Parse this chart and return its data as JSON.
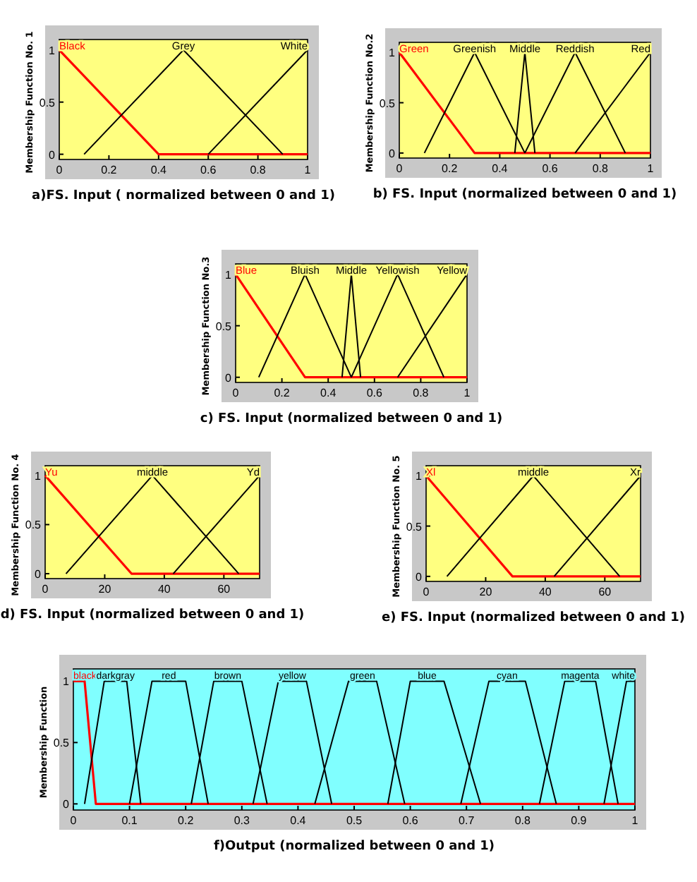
{
  "chart_data": [
    {
      "type": "line",
      "xlabel": "a)FS. Input ( normalized between 0 and 1)",
      "ylabel": "Membership Function No. 1",
      "xlim": [
        0,
        1
      ],
      "ylim": [
        -0.05,
        1.1
      ],
      "xticks": [
        0,
        0.2,
        0.4,
        0.6,
        0.8,
        1
      ],
      "yticks": [
        0,
        0.5,
        1
      ],
      "grid": false,
      "series": [
        {
          "name": "Black",
          "color": "#ff0000",
          "x": [
            0,
            0.4,
            1
          ],
          "values": [
            1,
            0,
            0
          ]
        },
        {
          "name": "Grey",
          "color": "#000000",
          "x": [
            0.1,
            0.5,
            0.9
          ],
          "values": [
            0,
            1,
            0
          ]
        },
        {
          "name": "White",
          "color": "#000000",
          "x": [
            0.6,
            1
          ],
          "values": [
            0,
            1
          ]
        }
      ]
    },
    {
      "type": "line",
      "xlabel": "b) FS. Input (normalized between 0 and 1)",
      "ylabel": "Membership Function No.2",
      "xlim": [
        0,
        1
      ],
      "ylim": [
        -0.05,
        1.1
      ],
      "xticks": [
        0,
        0.2,
        0.4,
        0.6,
        0.8,
        1
      ],
      "yticks": [
        0,
        0.5,
        1
      ],
      "grid": false,
      "series": [
        {
          "name": "Green",
          "color": "#ff0000",
          "x": [
            0,
            0.3,
            1
          ],
          "values": [
            1,
            0,
            0
          ]
        },
        {
          "name": "Greenish",
          "color": "#000000",
          "x": [
            0.1,
            0.3,
            0.5
          ],
          "values": [
            0,
            1,
            0
          ]
        },
        {
          "name": "Middle",
          "color": "#000000",
          "x": [
            0.46,
            0.5,
            0.54
          ],
          "values": [
            0,
            1,
            0
          ]
        },
        {
          "name": "Reddish",
          "color": "#000000",
          "x": [
            0.5,
            0.7,
            0.9
          ],
          "values": [
            0,
            1,
            0
          ]
        },
        {
          "name": "Red",
          "color": "#000000",
          "x": [
            0.7,
            1
          ],
          "values": [
            0,
            1
          ]
        }
      ]
    },
    {
      "type": "line",
      "xlabel": "c) FS. Input (normalized between 0 and 1)",
      "ylabel": "Membership Function No.3",
      "xlim": [
        0,
        1
      ],
      "ylim": [
        -0.05,
        1.1
      ],
      "xticks": [
        0,
        0.2,
        0.4,
        0.6,
        0.8,
        1
      ],
      "yticks": [
        0,
        0.5,
        1
      ],
      "grid": false,
      "series": [
        {
          "name": "Blue",
          "color": "#ff0000",
          "x": [
            0,
            0.3,
            1
          ],
          "values": [
            1,
            0,
            0
          ]
        },
        {
          "name": "Bluish",
          "color": "#000000",
          "x": [
            0.1,
            0.3,
            0.5
          ],
          "values": [
            0,
            1,
            0
          ]
        },
        {
          "name": "Middle",
          "color": "#000000",
          "x": [
            0.46,
            0.5,
            0.54
          ],
          "values": [
            0,
            1,
            0
          ]
        },
        {
          "name": "Yellowish",
          "color": "#000000",
          "x": [
            0.5,
            0.7,
            0.9
          ],
          "values": [
            0,
            1,
            0
          ]
        },
        {
          "name": "Yellow",
          "color": "#000000",
          "x": [
            0.7,
            1
          ],
          "values": [
            0,
            1
          ]
        }
      ]
    },
    {
      "type": "line",
      "xlabel": "d) FS. Input (normalized between 0 and 1)",
      "ylabel": "Membership Function No. 4",
      "xlim": [
        0,
        72
      ],
      "ylim": [
        -0.05,
        1.1
      ],
      "xticks": [
        0,
        20,
        40,
        60
      ],
      "yticks": [
        0,
        0.5,
        1
      ],
      "grid": false,
      "series": [
        {
          "name": "Yu",
          "color": "#ff0000",
          "x": [
            0,
            29,
            72
          ],
          "values": [
            1,
            0,
            0
          ]
        },
        {
          "name": "middle",
          "color": "#000000",
          "x": [
            7,
            36,
            65
          ],
          "values": [
            0,
            1,
            0
          ]
        },
        {
          "name": "Yd",
          "color": "#000000",
          "x": [
            43,
            72
          ],
          "values": [
            0,
            1
          ]
        }
      ]
    },
    {
      "type": "line",
      "xlabel": "e) FS. Input (normalized between 0 and 1)",
      "ylabel": "Membership Function No. 5",
      "xlim": [
        0,
        72
      ],
      "ylim": [
        -0.05,
        1.1
      ],
      "xticks": [
        0,
        20,
        40,
        60
      ],
      "yticks": [
        0,
        0.5,
        1
      ],
      "grid": false,
      "series": [
        {
          "name": "Xl",
          "color": "#ff0000",
          "x": [
            0,
            29,
            72
          ],
          "values": [
            1,
            0,
            0
          ]
        },
        {
          "name": "middle",
          "color": "#000000",
          "x": [
            7,
            36,
            65
          ],
          "values": [
            0,
            1,
            0
          ]
        },
        {
          "name": "Xr",
          "color": "#000000",
          "x": [
            43,
            72
          ],
          "values": [
            0,
            1
          ]
        }
      ]
    },
    {
      "type": "line",
      "xlabel": "f)Output (normalized between 0 and 1)",
      "ylabel": "Membership Function",
      "xlim": [
        0,
        1
      ],
      "ylim": [
        -0.05,
        1.1
      ],
      "xticks": [
        0,
        0.1,
        0.2,
        0.3,
        0.4,
        0.5,
        0.6,
        0.7,
        0.8,
        0.9,
        1
      ],
      "yticks": [
        0,
        0.5,
        1
      ],
      "grid": false,
      "series": [
        {
          "name": "black",
          "color": "#ff0000",
          "x": [
            0,
            0.02,
            0.04,
            1
          ],
          "values": [
            1,
            1,
            0,
            0
          ]
        },
        {
          "name": "darkgray",
          "color": "#000000",
          "x": [
            0.02,
            0.055,
            0.095,
            0.12
          ],
          "values": [
            0,
            1,
            1,
            0
          ]
        },
        {
          "name": "red",
          "color": "#000000",
          "x": [
            0.1,
            0.14,
            0.2,
            0.24
          ],
          "values": [
            0,
            1,
            1,
            0
          ]
        },
        {
          "name": "brown",
          "color": "#000000",
          "x": [
            0.21,
            0.25,
            0.3,
            0.345
          ],
          "values": [
            0,
            1,
            1,
            0
          ]
        },
        {
          "name": "yellow",
          "color": "#000000",
          "x": [
            0.32,
            0.365,
            0.415,
            0.46
          ],
          "values": [
            0,
            1,
            1,
            0
          ]
        },
        {
          "name": "green",
          "color": "#000000",
          "x": [
            0.43,
            0.49,
            0.54,
            0.59
          ],
          "values": [
            0,
            1,
            1,
            0
          ]
        },
        {
          "name": "blue",
          "color": "#000000",
          "x": [
            0.56,
            0.6,
            0.66,
            0.725
          ],
          "values": [
            0,
            1,
            1,
            0
          ]
        },
        {
          "name": "cyan",
          "color": "#000000",
          "x": [
            0.69,
            0.74,
            0.805,
            0.86
          ],
          "values": [
            0,
            1,
            1,
            0
          ]
        },
        {
          "name": "magenta",
          "color": "#000000",
          "x": [
            0.83,
            0.875,
            0.93,
            0.97
          ],
          "values": [
            0,
            1,
            1,
            0
          ]
        },
        {
          "name": "white",
          "color": "#000000",
          "x": [
            0.945,
            0.985,
            1
          ],
          "values": [
            0,
            1,
            1
          ]
        }
      ]
    }
  ]
}
